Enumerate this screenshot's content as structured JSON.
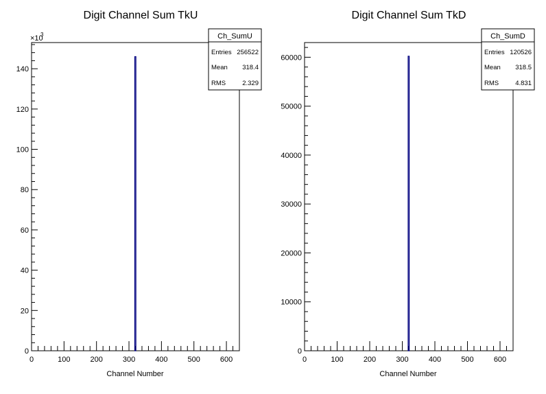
{
  "chart_data": [
    {
      "type": "bar",
      "title": "Digit Channel Sum TkU",
      "xlabel": "Channel Number",
      "ylabel": "",
      "xlim": [
        0,
        640
      ],
      "ylim": [
        0,
        153000
      ],
      "x_ticks": [
        0,
        100,
        200,
        300,
        400,
        500,
        600
      ],
      "x_tick_labels": [
        "0",
        "100",
        "200",
        "300",
        "400",
        "500",
        "600"
      ],
      "y_ticks": [
        0,
        20000,
        40000,
        60000,
        80000,
        100000,
        120000,
        140000
      ],
      "y_tick_labels": [
        "0",
        "20",
        "40",
        "60",
        "80",
        "100",
        "120",
        "140"
      ],
      "y_multiplier": "×10",
      "y_multiplier_exp": "3",
      "x": [
        318
      ],
      "values": [
        146000
      ],
      "line_color": "#000080",
      "stats": {
        "name": "Ch_SumU",
        "rows": [
          {
            "label": "Entries",
            "value": "256522"
          },
          {
            "label": "Mean",
            "value": "318.4"
          },
          {
            "label": "RMS",
            "value": "2.329"
          }
        ]
      }
    },
    {
      "type": "bar",
      "title": "Digit Channel Sum TkD",
      "xlabel": "Channel Number",
      "ylabel": "",
      "xlim": [
        0,
        640
      ],
      "ylim": [
        0,
        63000
      ],
      "x_ticks": [
        0,
        100,
        200,
        300,
        400,
        500,
        600
      ],
      "x_tick_labels": [
        "0",
        "100",
        "200",
        "300",
        "400",
        "500",
        "600"
      ],
      "y_ticks": [
        0,
        10000,
        20000,
        30000,
        40000,
        50000,
        60000
      ],
      "y_tick_labels": [
        "0",
        "10000",
        "20000",
        "30000",
        "40000",
        "50000",
        "60000"
      ],
      "y_multiplier": "",
      "y_multiplier_exp": "",
      "x": [
        318
      ],
      "values": [
        60200
      ],
      "line_color": "#000080",
      "stats": {
        "name": "Ch_SumD",
        "rows": [
          {
            "label": "Entries",
            "value": "120526"
          },
          {
            "label": "Mean",
            "value": "318.5"
          },
          {
            "label": "RMS",
            "value": "4.831"
          }
        ]
      }
    }
  ]
}
